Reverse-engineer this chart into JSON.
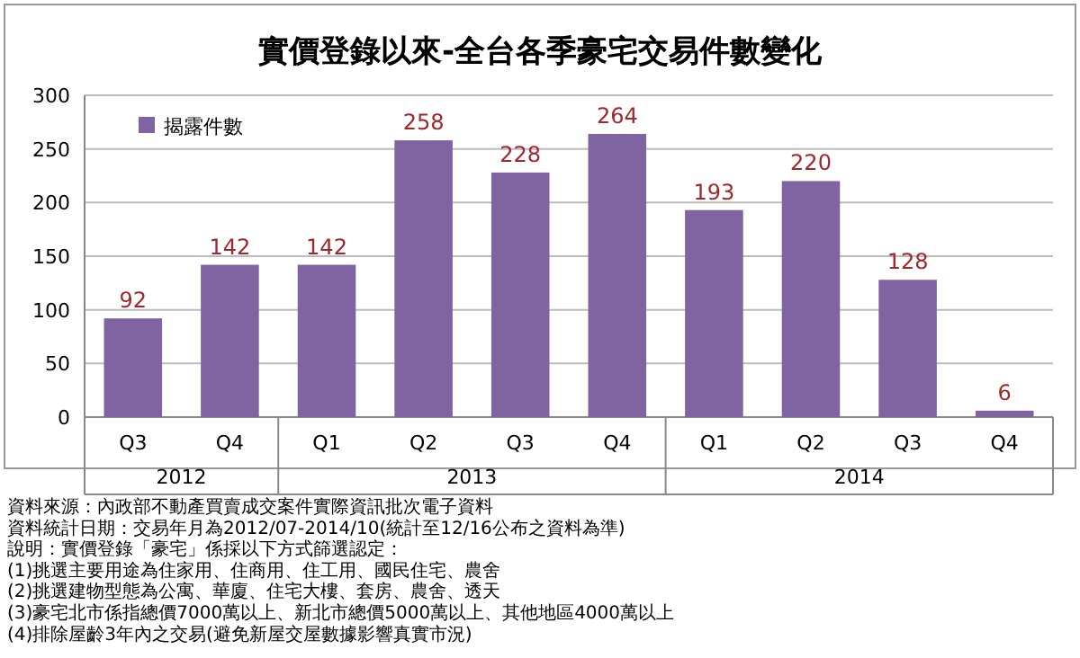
{
  "chart_data": {
    "type": "bar",
    "title": "實價登錄以來-全台各季豪宅交易件數變化",
    "categories": [
      "Q3",
      "Q4",
      "Q1",
      "Q2",
      "Q3",
      "Q4",
      "Q1",
      "Q2",
      "Q3",
      "Q4"
    ],
    "series": [
      {
        "name": "揭露件數",
        "color": "#8064a2",
        "values": [
          92,
          142,
          142,
          258,
          228,
          264,
          193,
          220,
          128,
          6
        ]
      }
    ],
    "ylim": [
      0,
      300
    ],
    "yticks": [
      0,
      50,
      100,
      150,
      200,
      250,
      300
    ],
    "grid": "y",
    "legend": "top left",
    "data_labels": true,
    "annotations": [
      "2012",
      "2013",
      "2014",
      "資料來源：內政部不動產買賣成交案件實際資訊批次電子資料",
      "資料統計日期：交易年月為2012/07-2014/10(統計至12/16公布之資料為準)",
      "說明：實價登錄「豪宅」係採以下方式篩選認定：",
      "(1)挑選主要用途為住家用、住商用、住工用、國民住宅、農舍",
      "(2)挑選建物型態為公寓、華廈、住宅大樓、套房、農舍、透天",
      "(3)豪宅北市係指總價7000萬以上、新北市總價5000萬以上、其他地區4000萬以上",
      "(4)排除屋齡3年內之交易(避免新屋交屋數據影響真實市況)"
    ]
  }
}
